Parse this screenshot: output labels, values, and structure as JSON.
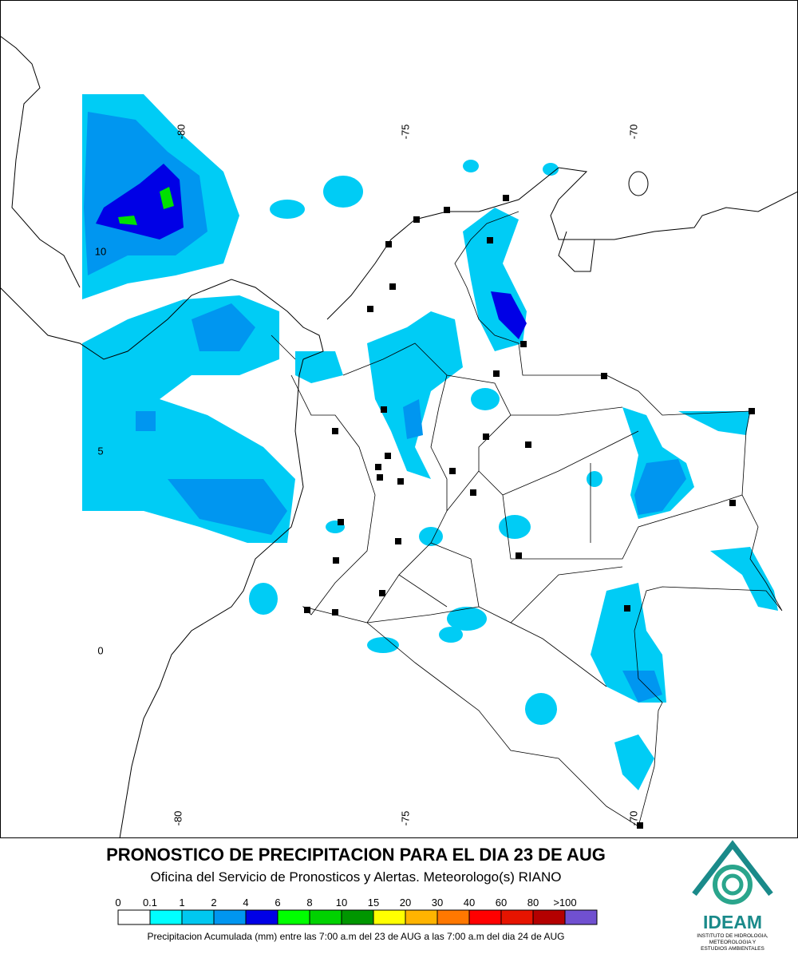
{
  "map": {
    "lon_labels_top": [
      "-80",
      "-75",
      "-70"
    ],
    "lon_labels_bottom": [
      "-80",
      "-75",
      "-70"
    ],
    "lat_labels": [
      "10",
      "5",
      "0"
    ]
  },
  "title": "PRONOSTICO DE PRECIPITACION PARA EL DIA 23 DE AUG",
  "subtitle": "Oficina del Servicio de Pronosticos y Alertas. Meteorologo(s) RIANO",
  "legend": {
    "labels": [
      "0",
      "0.1",
      "1",
      "2",
      "4",
      "6",
      "8",
      "10",
      "15",
      "20",
      "30",
      "40",
      "60",
      "80",
      ">100"
    ],
    "colors": [
      "#ffffff",
      "#00ffff",
      "#00c8f0",
      "#0096f0",
      "#0000e6",
      "#00ff00",
      "#00d200",
      "#009600",
      "#ffff00",
      "#ffb400",
      "#ff7800",
      "#ff0000",
      "#e61400",
      "#b40000",
      "#7050d0"
    ]
  },
  "footnote": "Precipitacion Acumulada (mm) entre las 7:00 a.m del 23 de AUG a las 7:00 a.m del dia 24 de AUG",
  "logo": {
    "name": "IDEAM",
    "lines": [
      "INSTITUTO DE HIDROLOGIA,",
      "METEOROLOGIA Y",
      "ESTUDIOS AMBIENTALES"
    ]
  }
}
